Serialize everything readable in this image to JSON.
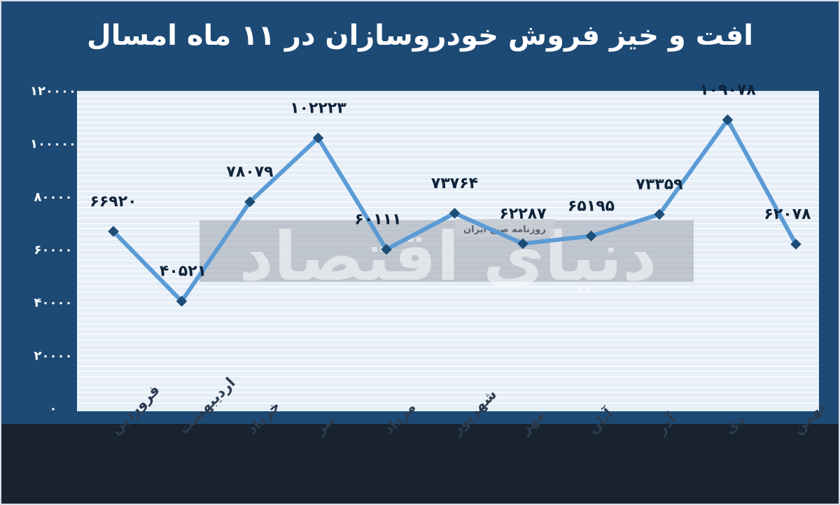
{
  "title": "افت و خیز فروش خودروسازان در ۱۱ ماه امسال",
  "watermark": {
    "main": "دنیای اقتصاد",
    "sub": "روزنامه صبح ایران"
  },
  "colors": {
    "background": "#1d4a75",
    "plot": "#e6eef7",
    "grid": "#ffffff",
    "line": "#5b9bd5",
    "marker": "#1e4d78",
    "bottom": "#18232f"
  },
  "chart_data": {
    "type": "line",
    "categories": [
      "فروردین",
      "اردیبهشت",
      "خرداد",
      "تیر",
      "مرداد",
      "شهریور",
      "مهر",
      "آبان",
      "آذر",
      "دی",
      "بهمن"
    ],
    "values": [
      66920,
      40521,
      78079,
      102223,
      60111,
      73764,
      62287,
      65195,
      73359,
      109078,
      62078
    ],
    "value_labels": [
      "۶۶۹۲۰",
      "۴۰۵۲۱",
      "۷۸۰۷۹",
      "۱۰۲۲۲۳",
      "۶۰۱۱۱",
      "۷۳۷۶۴",
      "۶۲۲۸۷",
      "۶۵۱۹۵",
      "۷۳۳۵۹",
      "۱۰۹۰۷۸",
      "۶۲۰۷۸"
    ],
    "ylim": [
      0,
      120000
    ],
    "yticks": [
      0,
      20000,
      40000,
      60000,
      80000,
      100000,
      120000
    ],
    "ytick_labels": [
      "۰",
      "۲۰۰۰۰",
      "۴۰۰۰۰",
      "۶۰۰۰۰",
      "۸۰۰۰۰",
      "۱۰۰۰۰۰",
      "۱۲۰۰۰۰"
    ],
    "grid": true,
    "legend": "none"
  }
}
